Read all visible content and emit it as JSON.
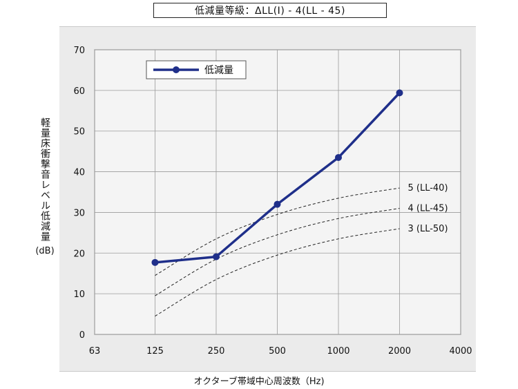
{
  "header": {
    "title": "低減量等級：ΔLL(Ⅰ) - 4(LL - 45)"
  },
  "axes": {
    "ylabel_text": "軽量床衝撃音レベル低減量",
    "ylabel_unit": "(dB)",
    "xlabel": "オクターブ帯域中心周波数（Hz)"
  },
  "colors": {
    "series": "#1f2f8a",
    "grid": "#9a9a9a",
    "reference": "#222222",
    "panel": "#ebebeb",
    "plot": "#f4f4f4"
  },
  "chart_data": {
    "type": "line",
    "title": "低減量等級：ΔLL(Ⅰ) - 4(LL - 45)",
    "xlabel": "オクターブ帯域中心周波数（Hz)",
    "ylabel": "軽量床衝撃音レベル低減量 (dB)",
    "x_scale": "log2",
    "x_ticks": [
      "63",
      "125",
      "250",
      "500",
      "1000",
      "2000",
      "4000"
    ],
    "y_ticks": [
      "0",
      "10",
      "20",
      "30",
      "40",
      "50",
      "60",
      "70"
    ],
    "ylim": [
      0,
      70
    ],
    "grid": true,
    "legend_position": "top-left",
    "series": [
      {
        "name": "低減量",
        "x": [
          125,
          250,
          500,
          1000,
          2000
        ],
        "values": [
          17.7,
          19.1,
          32,
          43.5,
          59.4
        ]
      }
    ],
    "reference_curves": [
      {
        "label": "5 (LL-40)",
        "x": [
          125,
          250,
          500,
          1000,
          2000
        ],
        "values": [
          14.5,
          23.5,
          29.5,
          33.5,
          36
        ]
      },
      {
        "label": "4 (LL-45)",
        "x": [
          125,
          250,
          500,
          1000,
          2000
        ],
        "values": [
          9.5,
          18.5,
          24.5,
          28.5,
          31
        ]
      },
      {
        "label": "3 (LL-50)",
        "x": [
          125,
          250,
          500,
          1000,
          2000
        ],
        "values": [
          4.5,
          13.5,
          19.5,
          23.5,
          26
        ]
      }
    ]
  }
}
